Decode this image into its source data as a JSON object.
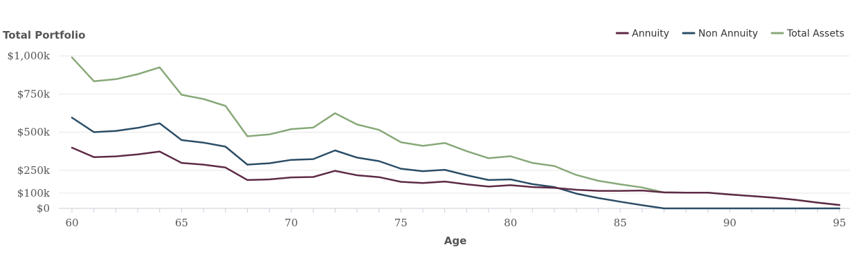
{
  "chart_data": {
    "type": "line",
    "title": "Total Portfolio",
    "xlabel": "Age",
    "ylabel": "",
    "xlim": [
      60,
      95
    ],
    "ylim": [
      0,
      1000
    ],
    "y_ticks": [
      {
        "value": 0,
        "label": "$0"
      },
      {
        "value": 100,
        "label": "$100k"
      },
      {
        "value": 250,
        "label": "$250k"
      },
      {
        "value": 500,
        "label": "$500k"
      },
      {
        "value": 750,
        "label": "$750k"
      },
      {
        "value": 1000,
        "label": "$1,000k"
      }
    ],
    "x_ticks": [
      {
        "value": 60,
        "label": "60"
      },
      {
        "value": 65,
        "label": "65"
      },
      {
        "value": 70,
        "label": "70"
      },
      {
        "value": 75,
        "label": "75"
      },
      {
        "value": 80,
        "label": "80"
      },
      {
        "value": 85,
        "label": "85"
      },
      {
        "value": 90,
        "label": "90"
      },
      {
        "value": 95,
        "label": "95"
      }
    ],
    "grid": "horizontal",
    "legend_position": "top-right",
    "x": [
      60,
      61,
      62,
      63,
      64,
      65,
      66,
      67,
      68,
      69,
      70,
      71,
      72,
      73,
      74,
      75,
      76,
      77,
      78,
      79,
      80,
      81,
      82,
      83,
      84,
      85,
      86,
      87,
      88,
      89,
      90,
      91,
      92,
      93,
      94,
      95
    ],
    "series": [
      {
        "name": "Annuity",
        "color": "#5e2a45",
        "values": [
          398,
          336,
          341,
          354,
          373,
          298,
          287,
          268,
          186,
          190,
          203,
          206,
          246,
          217,
          205,
          174,
          166,
          176,
          158,
          143,
          152,
          140,
          135,
          122,
          115,
          115,
          117,
          105,
          103,
          103,
          91,
          81,
          70,
          56,
          38,
          22
        ]
      },
      {
        "name": "Non Annuity",
        "color": "#2a4d67",
        "values": [
          595,
          500,
          508,
          528,
          558,
          448,
          431,
          405,
          287,
          296,
          318,
          323,
          380,
          333,
          310,
          260,
          244,
          253,
          217,
          186,
          190,
          159,
          140,
          97,
          68,
          44,
          21,
          0,
          0,
          0,
          0,
          0,
          0,
          0,
          0,
          0
        ]
      },
      {
        "name": "Total Assets",
        "color": "#87a878",
        "values": [
          990,
          834,
          847,
          880,
          925,
          745,
          717,
          672,
          473,
          485,
          520,
          530,
          624,
          550,
          515,
          434,
          410,
          429,
          375,
          329,
          342,
          298,
          278,
          219,
          181,
          158,
          137,
          104,
          103,
          103,
          91,
          81,
          70,
          56,
          38,
          22
        ]
      }
    ]
  }
}
